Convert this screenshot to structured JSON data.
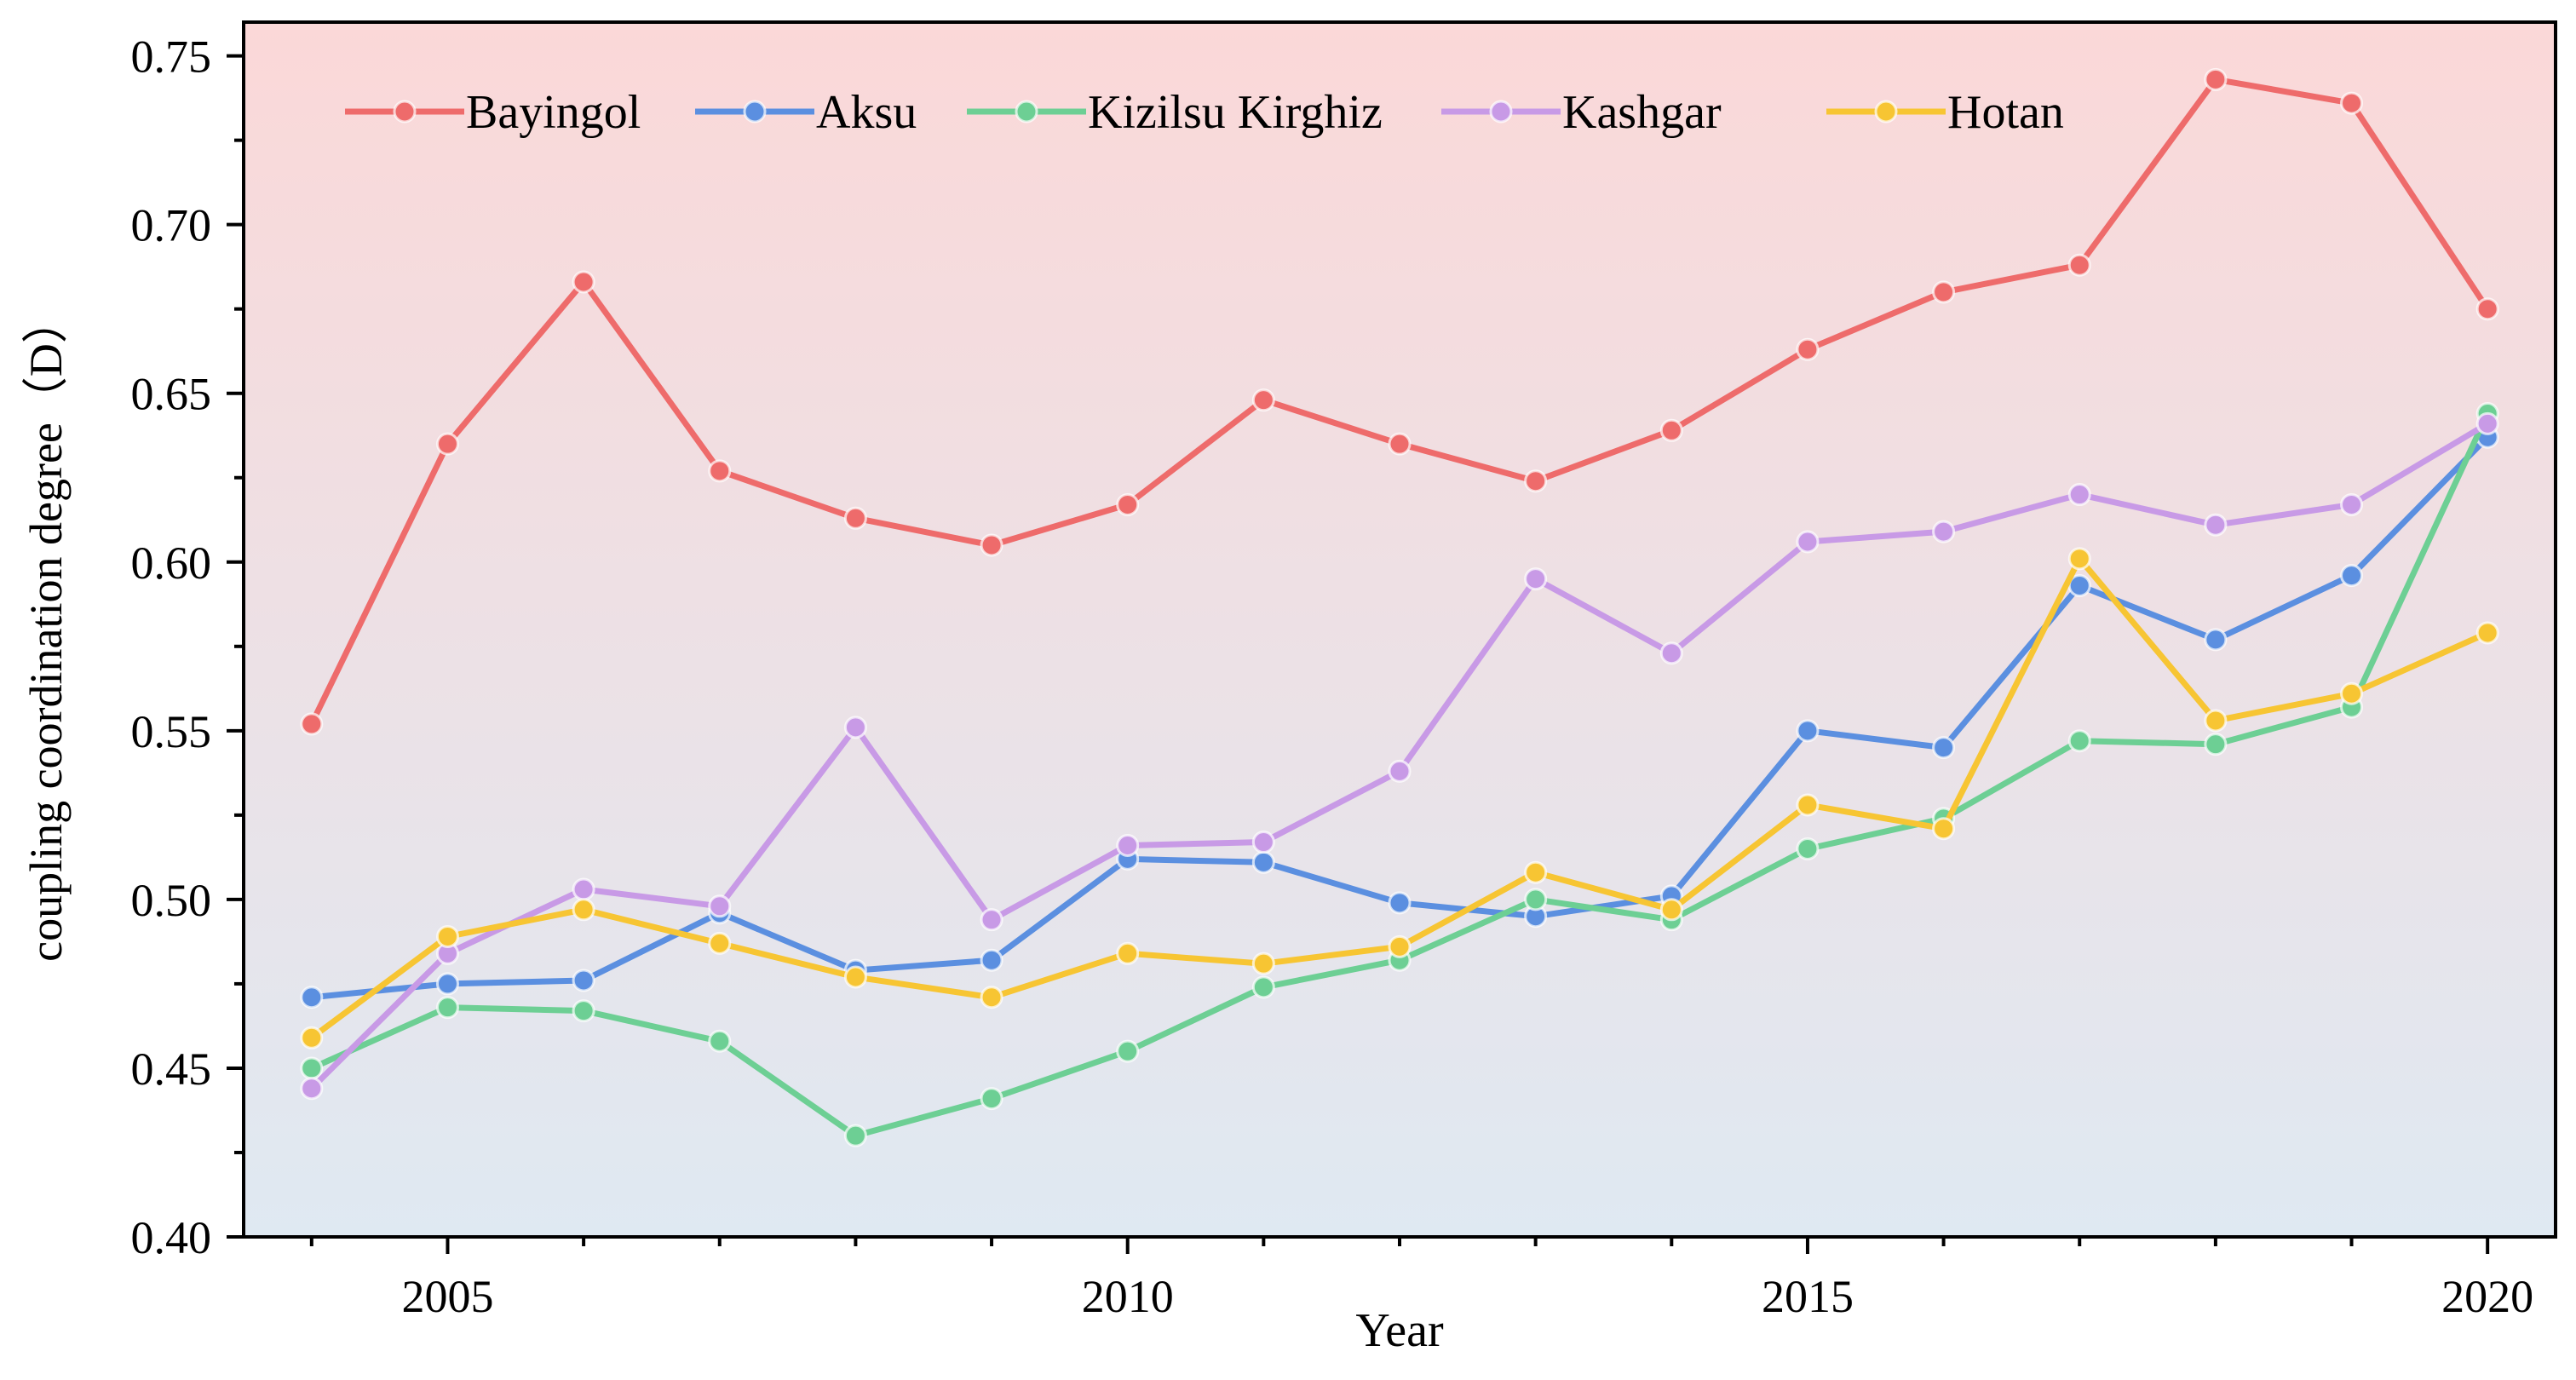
{
  "chart_data": {
    "type": "line",
    "title": "",
    "xlabel": "Year",
    "ylabel": "coupling coordination degree（D）",
    "xlim": [
      2003.5,
      2020.5
    ],
    "ylim": [
      0.4,
      0.76
    ],
    "x_ticks": [
      2005,
      2010,
      2015,
      2020
    ],
    "x_tick_labels": [
      "2005",
      "2010",
      "2015",
      "2020"
    ],
    "y_ticks": [
      0.4,
      0.45,
      0.5,
      0.55,
      0.6,
      0.65,
      0.7,
      0.75
    ],
    "y_tick_labels": [
      "0.40",
      "0.45",
      "0.50",
      "0.55",
      "0.60",
      "0.65",
      "0.70",
      "0.75"
    ],
    "legend_position": "top",
    "background_gradient": {
      "top": "#fbd8d8",
      "bottom": "#dfe9f2"
    },
    "x": [
      2004,
      2005,
      2006,
      2007,
      2008,
      2009,
      2010,
      2011,
      2012,
      2013,
      2014,
      2015,
      2016,
      2017,
      2018,
      2019,
      2020
    ],
    "series": [
      {
        "name": "Bayingol",
        "color": "#ee6b6b",
        "values": [
          0.552,
          0.635,
          0.683,
          0.627,
          0.613,
          0.605,
          0.617,
          0.648,
          0.635,
          0.624,
          0.639,
          0.663,
          0.68,
          0.688,
          0.743,
          0.736,
          0.675
        ]
      },
      {
        "name": "Aksu",
        "color": "#5b8fe0",
        "values": [
          0.471,
          0.475,
          0.476,
          0.496,
          0.479,
          0.482,
          0.512,
          0.511,
          0.499,
          0.495,
          0.501,
          0.55,
          0.545,
          0.593,
          0.577,
          0.596,
          0.637
        ]
      },
      {
        "name": "Kizilsu Kirghiz",
        "color": "#6dcf94",
        "values": [
          0.45,
          0.468,
          0.467,
          0.458,
          0.43,
          0.441,
          0.455,
          0.474,
          0.482,
          0.5,
          0.494,
          0.515,
          0.524,
          0.547,
          0.546,
          0.557,
          0.644
        ]
      },
      {
        "name": "Kashgar",
        "color": "#c89ae6",
        "values": [
          0.444,
          0.484,
          0.503,
          0.498,
          0.551,
          0.494,
          0.516,
          0.517,
          0.538,
          0.595,
          0.573,
          0.606,
          0.609,
          0.62,
          0.611,
          0.617,
          0.641
        ]
      },
      {
        "name": "Hotan",
        "color": "#f7c533",
        "values": [
          0.459,
          0.489,
          0.497,
          0.487,
          0.477,
          0.471,
          0.484,
          0.481,
          0.486,
          0.508,
          0.497,
          0.528,
          0.521,
          0.601,
          0.553,
          0.561,
          0.579
        ]
      }
    ]
  }
}
